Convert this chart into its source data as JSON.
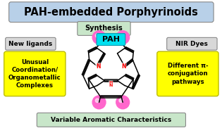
{
  "title": "PAH-embedded Porphyrinoids",
  "title_bg": "#b8d0e8",
  "outer_bg": "white",
  "outer_border_color": "#5aaad0",
  "synthesis_label": "Synthesis",
  "synthesis_bg": "#c8e6c9",
  "new_ligands_label": "New ligands",
  "new_ligands_bg": "#d8d8d8",
  "nir_dyes_label": "NIR Dyes",
  "nir_dyes_bg": "#d8d8d8",
  "left_box_text": "Unusual\nCoordination/\nOrganometallic\nComplexes",
  "left_box_bg": "#ffff00",
  "right_box_text": "Different π-\nconjugation\npathways",
  "right_box_bg": "#ffff00",
  "bottom_label": "Variable Aromatic Characteristics",
  "bottom_bg": "#c8e6c9",
  "pah_label": "PAH",
  "pah_bg": "#00e0f0",
  "sphere_color": "#ff66cc",
  "n_color": "#ff0000",
  "bond_color": "#000000",
  "bond_lw": 1.1
}
